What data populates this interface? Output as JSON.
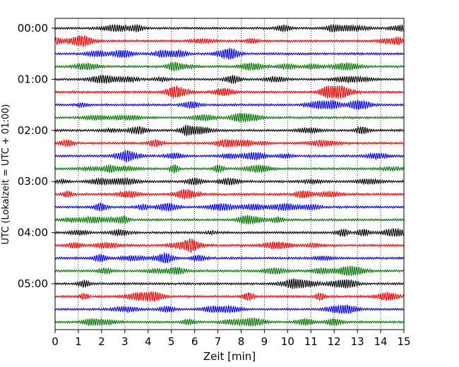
{
  "chart_data": {
    "type": "line",
    "title": "",
    "xlabel": "Zeit  [min]",
    "ylabel": "UTC (Lokalzeit = UTC + 01:00)",
    "xlim": [
      0,
      15
    ],
    "x_ticks": [
      "0",
      "1",
      "2",
      "3",
      "4",
      "5",
      "6",
      "7",
      "8",
      "9",
      "10",
      "11",
      "12",
      "13",
      "14",
      "15"
    ],
    "y_ticks": [
      "00:00",
      "01:00",
      "02:00",
      "03:00",
      "04:00",
      "05:00"
    ],
    "grid": "vertical dotted",
    "traces_per_hour": 4,
    "trace_minutes": 15,
    "series_colors": [
      "#000000",
      "#ff0000",
      "#0000ff",
      "#007700"
    ],
    "trace_count": 24
  }
}
